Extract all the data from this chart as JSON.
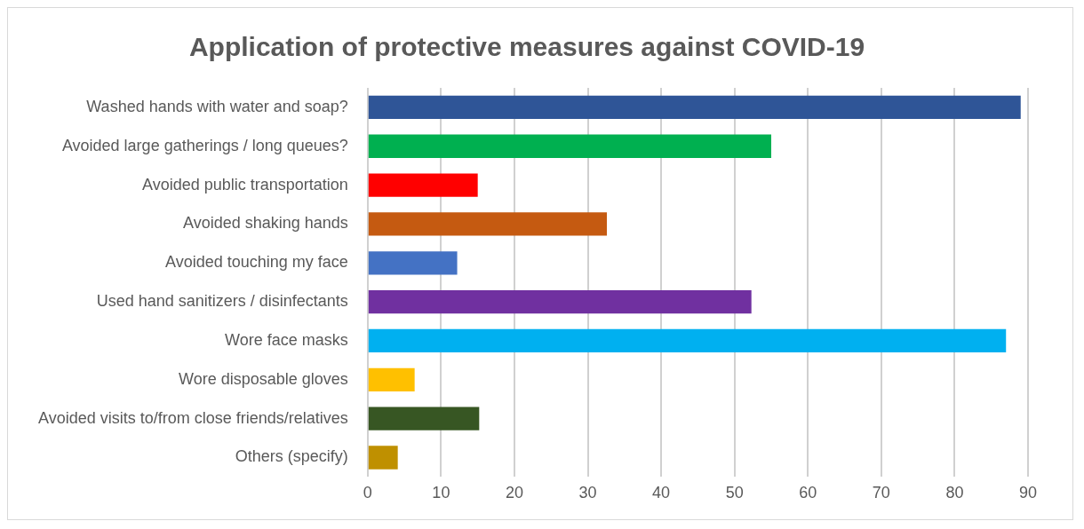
{
  "chart_data": {
    "type": "bar",
    "orientation": "horizontal",
    "title": "Application of protective measures against COVID-19",
    "categories": [
      "Washed hands with water and soap?",
      "Avoided large gatherings / long queues?",
      "Avoided public transportation",
      "Avoided shaking hands",
      "Avoided touching my face",
      "Used hand sanitizers / disinfectants",
      "Wore face masks",
      "Wore disposable gloves",
      "Avoided visits to/from close friends/relatives",
      "Others (specify)"
    ],
    "values": [
      89,
      55,
      15,
      32.6,
      12.2,
      52.3,
      87,
      6.4,
      15.2,
      4.1
    ],
    "colors": [
      "#2f5597",
      "#00b050",
      "#ff0000",
      "#c55a11",
      "#4472c4",
      "#7030a0",
      "#00b0f0",
      "#ffc000",
      "#375623",
      "#bf9000"
    ],
    "xlim": [
      0,
      90
    ],
    "xticks": [
      0,
      10,
      20,
      30,
      40,
      50,
      60,
      70,
      80,
      90
    ],
    "grid": "x",
    "legend": false
  }
}
